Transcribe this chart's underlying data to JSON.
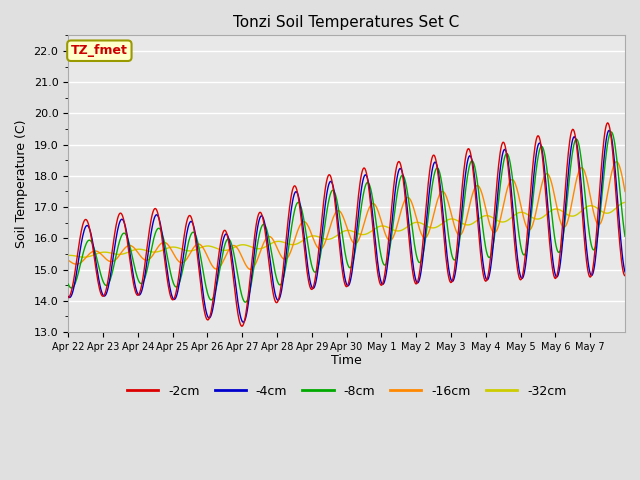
{
  "title": "Tonzi Soil Temperatures Set C",
  "xlabel": "Time",
  "ylabel": "Soil Temperature (C)",
  "annotation_label": "TZ_fmet",
  "annotation_box_color": "#ffffcc",
  "annotation_text_color": "#cc0000",
  "annotation_border_color": "#999900",
  "series_colors": {
    "-2cm": "#dd0000",
    "-4cm": "#0000cc",
    "-8cm": "#00aa00",
    "-16cm": "#ff8800",
    "-32cm": "#cccc00"
  },
  "ylim": [
    13.0,
    22.5
  ],
  "yticks": [
    13.0,
    14.0,
    15.0,
    16.0,
    17.0,
    18.0,
    19.0,
    20.0,
    21.0,
    22.0
  ],
  "fig_bg_color": "#e0e0e0",
  "plot_bg_color": "#e8e8e8",
  "grid_color": "#ffffff",
  "x_tick_labels": [
    "Apr 22",
    "Apr 23",
    "Apr 24",
    "Apr 25",
    "Apr 26",
    "Apr 27",
    "Apr 28",
    "Apr 29",
    "Apr 30",
    "May 1",
    "May 2",
    "May 3",
    "May 4",
    "May 5",
    "May 6",
    "May 7"
  ]
}
